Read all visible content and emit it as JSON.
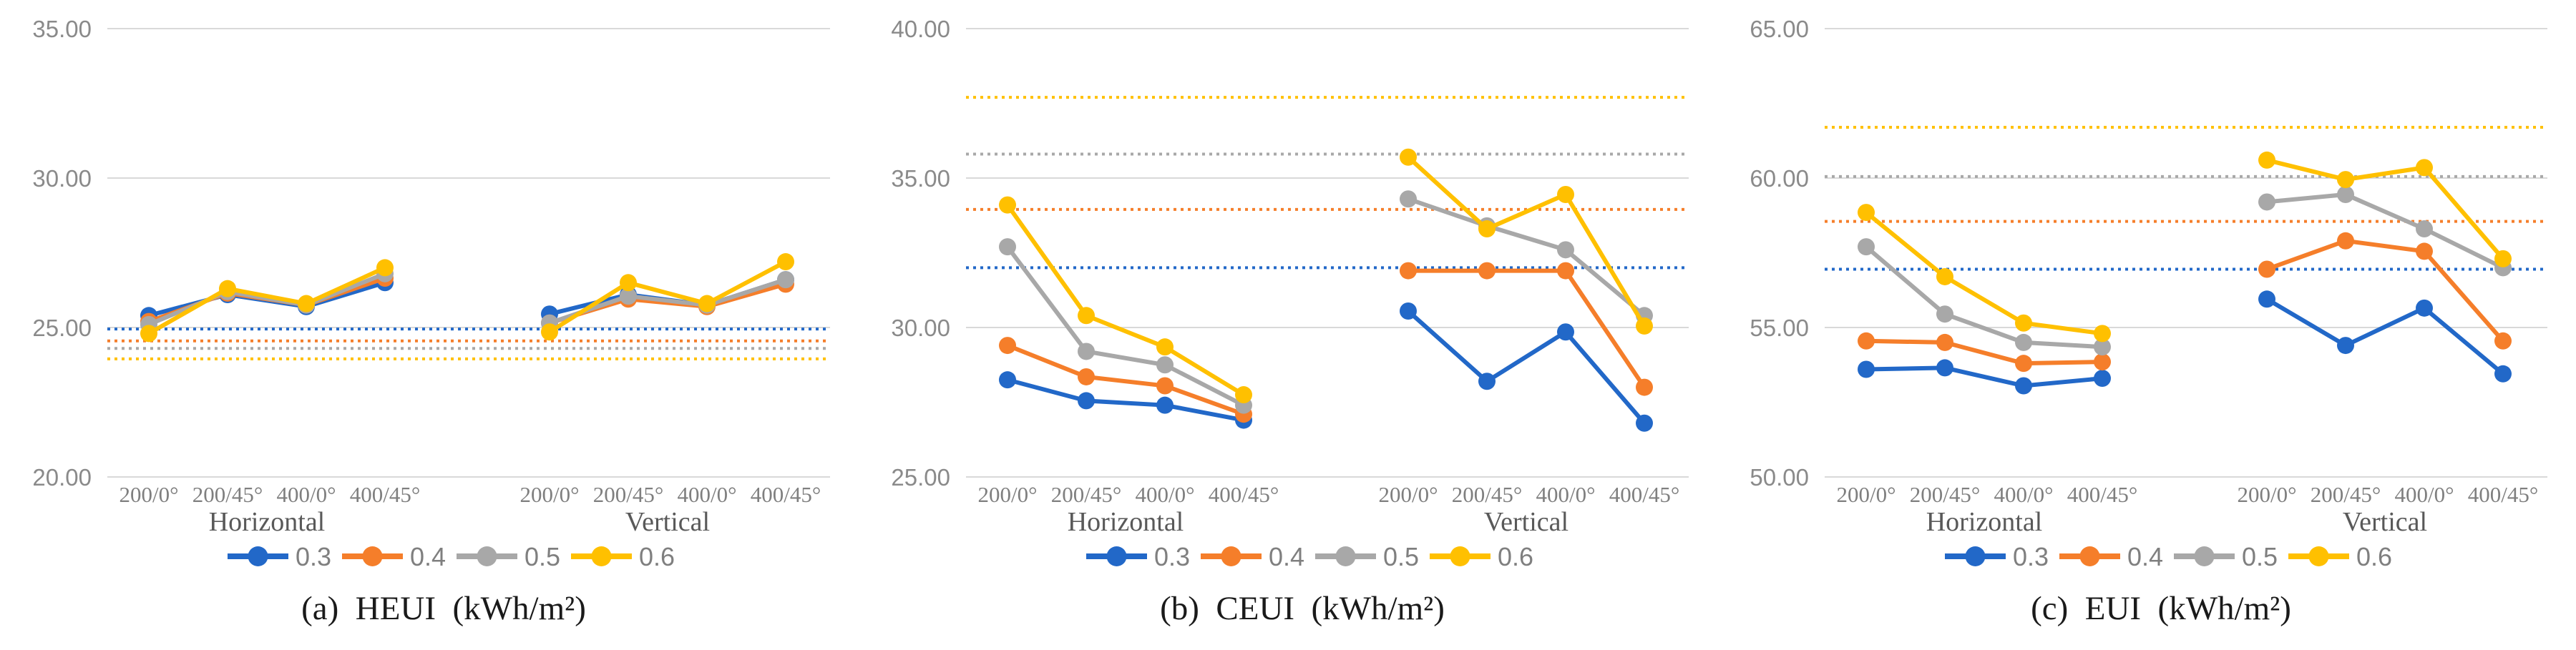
{
  "theme": {
    "background": "#ffffff",
    "grid_color": "#d9d9d9",
    "axis_text_color": "#8a8a8a",
    "category_text_color": "#7f7f7f",
    "group_text_color": "#595959",
    "caption_text_color": "#1a1a1a",
    "series_palette": {
      "0.3": "#2268c8",
      "0.4": "#f57e2a",
      "0.5": "#a8a8a8",
      "0.6": "#ffc000"
    }
  },
  "chart_data": [
    {
      "type": "line",
      "caption": "(a)  HEUI  (kWh/m²)",
      "xlabel": "",
      "ylabel": "",
      "ylim": [
        20,
        35
      ],
      "grid": true,
      "legend_position": "bottom",
      "ytick_values": [
        35,
        30,
        25,
        20
      ],
      "ytick_labels": [
        "35.00",
        "30.00",
        "25.00",
        "20.00"
      ],
      "categories": [
        "200/0°",
        "200/45°",
        "400/0°",
        "400/45°"
      ],
      "group_labels": [
        "Horizontal",
        "Vertical"
      ],
      "series": [
        {
          "name": "0.3",
          "color": "#2268c8",
          "reference_line": 24.95,
          "groups": {
            "horizontal": [
              25.4,
              26.1,
              25.7,
              26.5
            ],
            "vertical": [
              25.45,
              26.1,
              25.75,
              26.6
            ]
          }
        },
        {
          "name": "0.4",
          "color": "#f57e2a",
          "reference_line": 24.55,
          "groups": {
            "horizontal": [
              25.2,
              26.15,
              25.75,
              26.65
            ],
            "vertical": [
              25.15,
              25.95,
              25.7,
              26.45
            ]
          }
        },
        {
          "name": "0.5",
          "color": "#a8a8a8",
          "reference_line": 24.3,
          "groups": {
            "horizontal": [
              25.1,
              26.2,
              25.75,
              26.8
            ],
            "vertical": [
              25.15,
              26.05,
              25.75,
              26.6
            ]
          }
        },
        {
          "name": "0.6",
          "color": "#ffc000",
          "reference_line": 23.95,
          "groups": {
            "horizontal": [
              24.8,
              26.3,
              25.8,
              27.0
            ],
            "vertical": [
              24.85,
              26.5,
              25.8,
              27.2
            ]
          }
        }
      ]
    },
    {
      "type": "line",
      "caption": "(b)  CEUI  (kWh/m²)",
      "xlabel": "",
      "ylabel": "",
      "ylim": [
        25,
        40
      ],
      "grid": true,
      "legend_position": "bottom",
      "ytick_values": [
        40,
        35,
        30,
        25
      ],
      "ytick_labels": [
        "40.00",
        "35.00",
        "30.00",
        "25.00"
      ],
      "categories": [
        "200/0°",
        "200/45°",
        "400/0°",
        "400/45°"
      ],
      "group_labels": [
        "Horizontal",
        "Vertical"
      ],
      "series": [
        {
          "name": "0.3",
          "color": "#2268c8",
          "reference_line": 32.0,
          "groups": {
            "horizontal": [
              28.25,
              27.55,
              27.4,
              26.9
            ],
            "vertical": [
              30.55,
              28.2,
              29.85,
              26.8
            ]
          }
        },
        {
          "name": "0.4",
          "color": "#f57e2a",
          "reference_line": 33.95,
          "groups": {
            "horizontal": [
              29.4,
              28.35,
              28.05,
              27.1
            ],
            "vertical": [
              31.9,
              31.9,
              31.9,
              28.0
            ]
          }
        },
        {
          "name": "0.5",
          "color": "#a8a8a8",
          "reference_line": 35.8,
          "groups": {
            "horizontal": [
              32.7,
              29.2,
              28.75,
              27.4
            ],
            "vertical": [
              34.3,
              33.4,
              32.6,
              30.4
            ]
          }
        },
        {
          "name": "0.6",
          "color": "#ffc000",
          "reference_line": 37.7,
          "groups": {
            "horizontal": [
              34.1,
              30.4,
              29.35,
              27.75
            ],
            "vertical": [
              35.7,
              33.3,
              34.45,
              30.05
            ]
          }
        }
      ]
    },
    {
      "type": "line",
      "caption": "(c)  EUI  (kWh/m²)",
      "xlabel": "",
      "ylabel": "",
      "ylim": [
        50,
        65
      ],
      "grid": true,
      "legend_position": "bottom",
      "ytick_values": [
        65,
        60,
        55,
        50
      ],
      "ytick_labels": [
        "65.00",
        "60.00",
        "55.00",
        "50.00"
      ],
      "categories": [
        "200/0°",
        "200/45°",
        "400/0°",
        "400/45°"
      ],
      "group_labels": [
        "Horizontal",
        "Vertical"
      ],
      "series": [
        {
          "name": "0.3",
          "color": "#2268c8",
          "reference_line": 56.95,
          "groups": {
            "horizontal": [
              53.6,
              53.65,
              53.05,
              53.3
            ],
            "vertical": [
              55.95,
              54.4,
              55.65,
              53.45
            ]
          }
        },
        {
          "name": "0.4",
          "color": "#f57e2a",
          "reference_line": 58.55,
          "groups": {
            "horizontal": [
              54.55,
              54.5,
              53.8,
              53.85
            ],
            "vertical": [
              56.95,
              57.9,
              57.55,
              54.55
            ]
          }
        },
        {
          "name": "0.5",
          "color": "#a8a8a8",
          "reference_line": 60.05,
          "groups": {
            "horizontal": [
              57.7,
              55.45,
              54.5,
              54.35
            ],
            "vertical": [
              59.2,
              59.45,
              58.3,
              57.0
            ]
          }
        },
        {
          "name": "0.6",
          "color": "#ffc000",
          "reference_line": 61.7,
          "groups": {
            "horizontal": [
              58.85,
              56.7,
              55.15,
              54.8
            ],
            "vertical": [
              60.6,
              59.95,
              60.35,
              57.3
            ]
          }
        }
      ]
    }
  ]
}
